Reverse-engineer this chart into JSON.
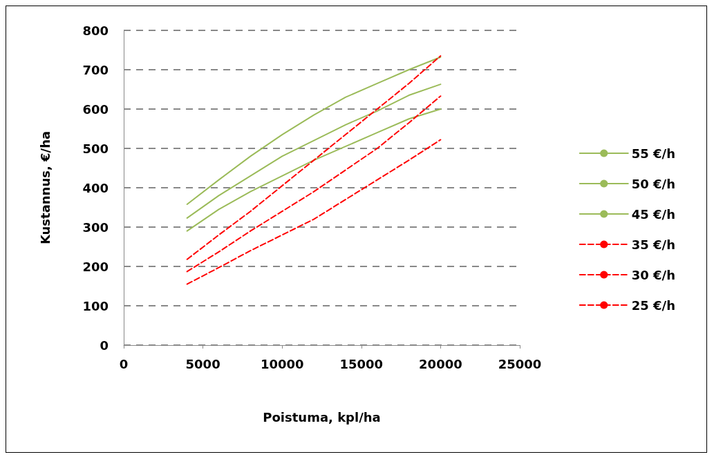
{
  "chart_data": {
    "type": "line",
    "xlabel": "Poistuma, kpl/ha",
    "ylabel": "Kustannus, €/ha",
    "x": [
      4000,
      6000,
      8000,
      10000,
      12000,
      14000,
      16000,
      18000,
      20000
    ],
    "series": [
      {
        "name": "55 €/h",
        "color": "#9bbb59",
        "line_style": "solid",
        "values": [
          358,
          420,
          480,
          535,
          585,
          630,
          665,
          700,
          732
        ]
      },
      {
        "name": "50 €/h",
        "color": "#9bbb59",
        "line_style": "solid",
        "values": [
          323,
          380,
          430,
          480,
          520,
          560,
          595,
          635,
          663
        ]
      },
      {
        "name": "45 €/h",
        "color": "#9bbb59",
        "line_style": "solid",
        "values": [
          290,
          345,
          390,
          430,
          470,
          505,
          540,
          575,
          600
        ]
      },
      {
        "name": "35 €/h",
        "color": "#ff0000",
        "line_style": "dashed",
        "values": [
          218,
          280,
          340,
          405,
          470,
          535,
          600,
          665,
          735
        ]
      },
      {
        "name": "30 €/h",
        "color": "#ff0000",
        "line_style": "dashed",
        "values": [
          187,
          237,
          290,
          340,
          390,
          445,
          500,
          565,
          633
        ]
      },
      {
        "name": "25 €/h",
        "color": "#ff0000",
        "line_style": "dashed",
        "values": [
          155,
          197,
          240,
          280,
          320,
          370,
          420,
          470,
          522
        ]
      }
    ],
    "xlim": [
      0,
      25000
    ],
    "xticks": [
      0,
      5000,
      10000,
      15000,
      20000,
      25000
    ],
    "ylim": [
      0,
      800
    ],
    "yticks": [
      0,
      100,
      200,
      300,
      400,
      500,
      600,
      700,
      800
    ],
    "grid": "y",
    "legend": "right",
    "marker": "none"
  }
}
